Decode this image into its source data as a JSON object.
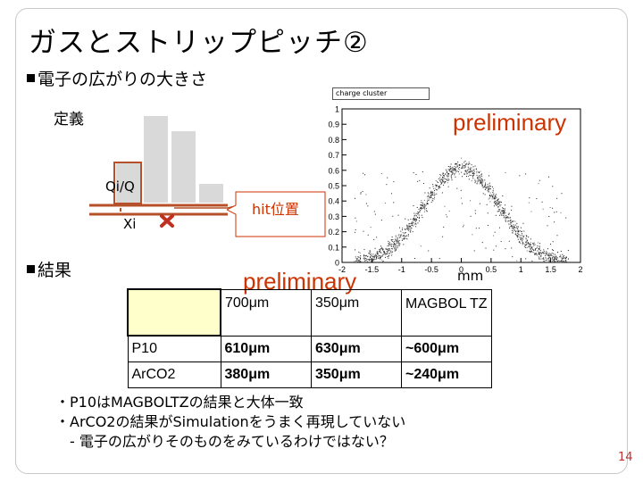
{
  "slide": {
    "title": "ガスとストリップピッチ②",
    "bullet1": "電子の広がりの大きさ",
    "definition_label": "定義",
    "qi_label": "Qi/Q",
    "xi_label": "Xi",
    "hit_label": "hit位置",
    "preliminary_plot": "preliminary",
    "preliminary_table": "preliminary",
    "bullet2": "結果",
    "page_number": "14"
  },
  "plot": {
    "title": "charge cluster",
    "x_unit": "mm",
    "x_ticks": [
      "-2",
      "-1.5",
      "-1",
      "-0.5",
      "0",
      "0.5",
      "1",
      "1.5",
      "2"
    ],
    "y_ticks": [
      "0",
      "0.1",
      "0.2",
      "0.3",
      "0.4",
      "0.5",
      "0.6",
      "0.7",
      "0.8",
      "0.9",
      "1"
    ]
  },
  "table": {
    "header": [
      "",
      "700μm",
      "350μm",
      "MAGBOL TZ"
    ],
    "rows": [
      [
        "P10",
        "610μm",
        "630μm",
        "~600μm"
      ],
      [
        "ArCO2",
        "380μm",
        "350μm",
        "~240μm"
      ]
    ]
  },
  "notes": [
    "・P10はMAGBOLTZの結果と大体一致",
    "・ArCO2の結果がSimulationをうまく再現していない",
    "　- 電子の広がりそのものをみているわけではない？"
  ],
  "colors": {
    "accent_red": "#cc3300",
    "bar_gray": "#d9d9d9",
    "bar_highlight": "#b5502a"
  }
}
